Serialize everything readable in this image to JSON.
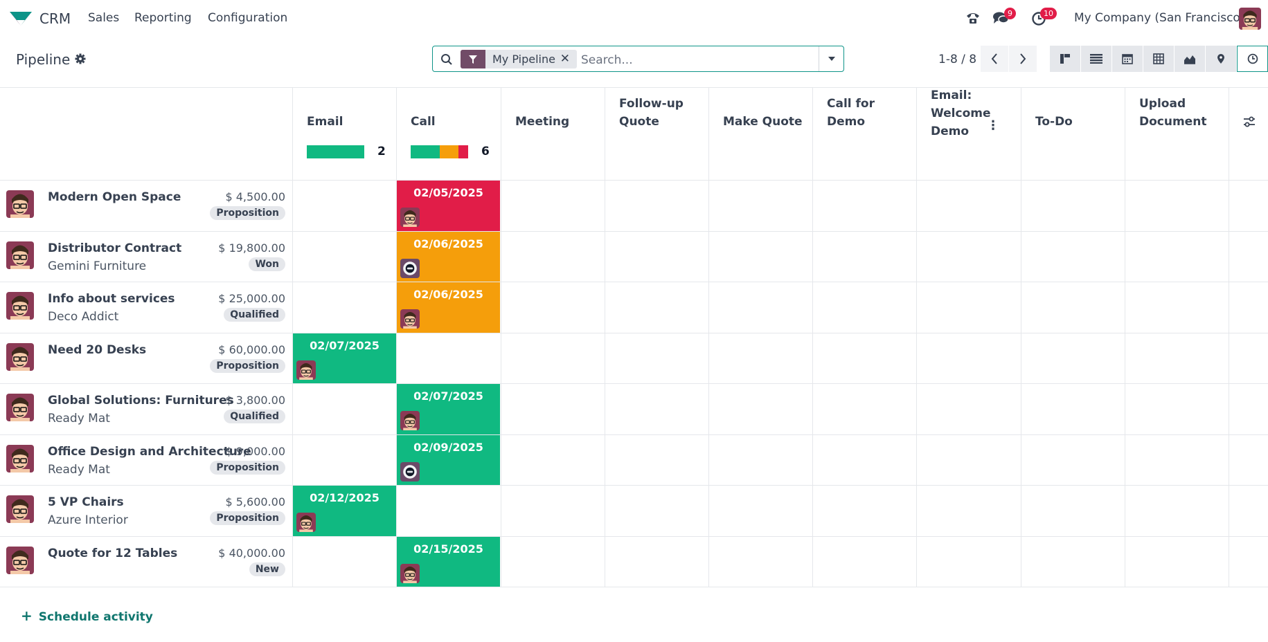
{
  "nav": {
    "app_name": "CRM",
    "menu": [
      "Sales",
      "Reporting",
      "Configuration"
    ],
    "messages_badge": "9",
    "activities_badge": "10",
    "company": "My Company (San Francisco)"
  },
  "control": {
    "title": "Pipeline",
    "facet_label": "My Pipeline",
    "search_placeholder": "Search...",
    "pager": "1-8 / 8"
  },
  "columns": [
    {
      "title": "Email",
      "count": "2",
      "progress": [
        {
          "color": "#10b981",
          "fraction": 1.0
        }
      ]
    },
    {
      "title": "Call",
      "count": "6",
      "progress": [
        {
          "color": "#10b981",
          "fraction": 0.5
        },
        {
          "color": "#f59e0b",
          "fraction": 0.333
        },
        {
          "color": "#e11d48",
          "fraction": 0.167
        }
      ]
    },
    {
      "title": "Meeting"
    },
    {
      "title": "Follow-up Quote"
    },
    {
      "title": "Make Quote"
    },
    {
      "title": "Call for Demo"
    },
    {
      "title": "Email: Welcome Demo"
    },
    {
      "title": "To-Do"
    },
    {
      "title": "Upload Document"
    }
  ],
  "rows": [
    {
      "name": "Modern Open Space",
      "partner": "",
      "amount": "$ 4,500.00",
      "stage": "Proposition",
      "activity_col": 1,
      "date": "02/05/2025",
      "status_color": "#e11d48"
    },
    {
      "name": "Distributor Contract",
      "partner": "Gemini Furniture",
      "amount": "$ 19,800.00",
      "stage": "Won",
      "activity_col": 1,
      "date": "02/06/2025",
      "status_color": "#f59e0b"
    },
    {
      "name": "Info about services",
      "partner": "Deco Addict",
      "amount": "$ 25,000.00",
      "stage": "Qualified",
      "activity_col": 1,
      "date": "02/06/2025",
      "status_color": "#f59e0b"
    },
    {
      "name": "Need 20 Desks",
      "partner": "",
      "amount": "$ 60,000.00",
      "stage": "Proposition",
      "activity_col": 0,
      "date": "02/07/2025",
      "status_color": "#10b981"
    },
    {
      "name": "Global Solutions: Furnitures",
      "partner": "Ready Mat",
      "amount": "$ 3,800.00",
      "stage": "Qualified",
      "activity_col": 1,
      "date": "02/07/2025",
      "status_color": "#10b981"
    },
    {
      "name": "Office Design and Architecture",
      "partner": "Ready Mat",
      "amount": "$ 9,000.00",
      "stage": "Proposition",
      "activity_col": 1,
      "date": "02/09/2025",
      "status_color": "#10b981"
    },
    {
      "name": "5 VP Chairs",
      "partner": "Azure Interior",
      "amount": "$ 5,600.00",
      "stage": "Proposition",
      "activity_col": 0,
      "date": "02/12/2025",
      "status_color": "#10b981"
    },
    {
      "name": "Quote for 12 Tables",
      "partner": "",
      "amount": "$ 40,000.00",
      "stage": "New",
      "activity_col": 1,
      "date": "02/15/2025",
      "status_color": "#10b981"
    }
  ],
  "footer": {
    "schedule_label": "Schedule activity"
  }
}
